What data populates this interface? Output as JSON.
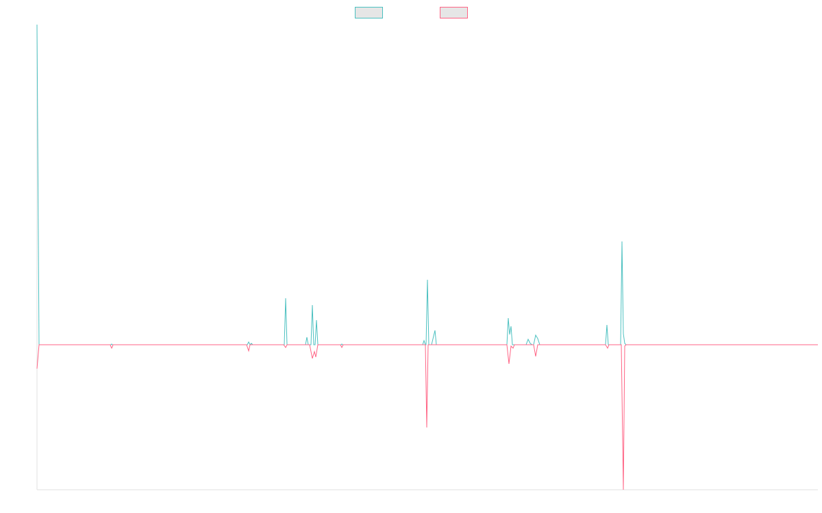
{
  "chart_data": {
    "type": "line",
    "title": "",
    "xlabel": "",
    "ylabel": "",
    "legend_position": "top-center",
    "grid": false,
    "show_tick_labels": false,
    "xlim": [
      0,
      1140
    ],
    "ylim": [
      -212,
      468
    ],
    "series": [
      {
        "name": "",
        "color": "#4bc0c0",
        "points": [
          [
            0,
            468
          ],
          [
            3,
            0
          ],
          [
            108,
            0
          ],
          [
            109,
            1
          ],
          [
            110,
            0
          ],
          [
            307,
            0
          ],
          [
            309,
            4
          ],
          [
            311,
            0
          ],
          [
            313,
            2
          ],
          [
            315,
            0
          ],
          [
            361,
            0
          ],
          [
            363,
            68
          ],
          [
            365,
            0
          ],
          [
            392,
            0
          ],
          [
            394,
            11
          ],
          [
            396,
            0
          ],
          [
            400,
            0
          ],
          [
            402,
            58
          ],
          [
            404,
            0
          ],
          [
            406,
            0
          ],
          [
            408,
            36
          ],
          [
            410,
            0
          ],
          [
            444,
            0
          ],
          [
            445,
            1
          ],
          [
            446,
            0
          ],
          [
            563,
            0
          ],
          [
            565,
            6
          ],
          [
            567,
            0
          ],
          [
            568,
            0
          ],
          [
            570,
            95
          ],
          [
            572,
            0
          ],
          [
            576,
            0
          ],
          [
            581,
            21
          ],
          [
            583,
            0
          ],
          [
            686,
            0
          ],
          [
            688,
            39
          ],
          [
            690,
            15
          ],
          [
            692,
            27
          ],
          [
            694,
            0
          ],
          [
            714,
            0
          ],
          [
            717,
            8
          ],
          [
            720,
            2
          ],
          [
            723,
            0
          ],
          [
            725,
            0
          ],
          [
            728,
            14
          ],
          [
            731,
            9
          ],
          [
            734,
            0
          ],
          [
            830,
            0
          ],
          [
            832,
            29
          ],
          [
            834,
            0
          ],
          [
            852,
            0
          ],
          [
            854,
            151
          ],
          [
            856,
            16
          ],
          [
            858,
            2
          ],
          [
            860,
            0
          ],
          [
            1140,
            0
          ]
        ]
      },
      {
        "name": "",
        "color": "#ff6384",
        "points": [
          [
            0,
            -35
          ],
          [
            3,
            0
          ],
          [
            107,
            0
          ],
          [
            108,
            -3
          ],
          [
            109,
            -5
          ],
          [
            110,
            -3
          ],
          [
            111,
            0
          ],
          [
            306,
            0
          ],
          [
            309,
            -9
          ],
          [
            311,
            0
          ],
          [
            360,
            0
          ],
          [
            363,
            -4
          ],
          [
            365,
            0
          ],
          [
            398,
            0
          ],
          [
            402,
            -20
          ],
          [
            405,
            -10
          ],
          [
            407,
            -18
          ],
          [
            410,
            0
          ],
          [
            443,
            0
          ],
          [
            445,
            -4
          ],
          [
            447,
            0
          ],
          [
            567,
            0
          ],
          [
            569,
            -121
          ],
          [
            571,
            0
          ],
          [
            686,
            0
          ],
          [
            689,
            -28
          ],
          [
            692,
            -2
          ],
          [
            695,
            -5
          ],
          [
            697,
            0
          ],
          [
            725,
            0
          ],
          [
            728,
            -17
          ],
          [
            731,
            0
          ],
          [
            830,
            0
          ],
          [
            833,
            -5
          ],
          [
            835,
            0
          ],
          [
            853,
            0
          ],
          [
            856,
            -212
          ],
          [
            858,
            -2
          ],
          [
            860,
            0
          ],
          [
            1140,
            0
          ]
        ]
      }
    ]
  }
}
